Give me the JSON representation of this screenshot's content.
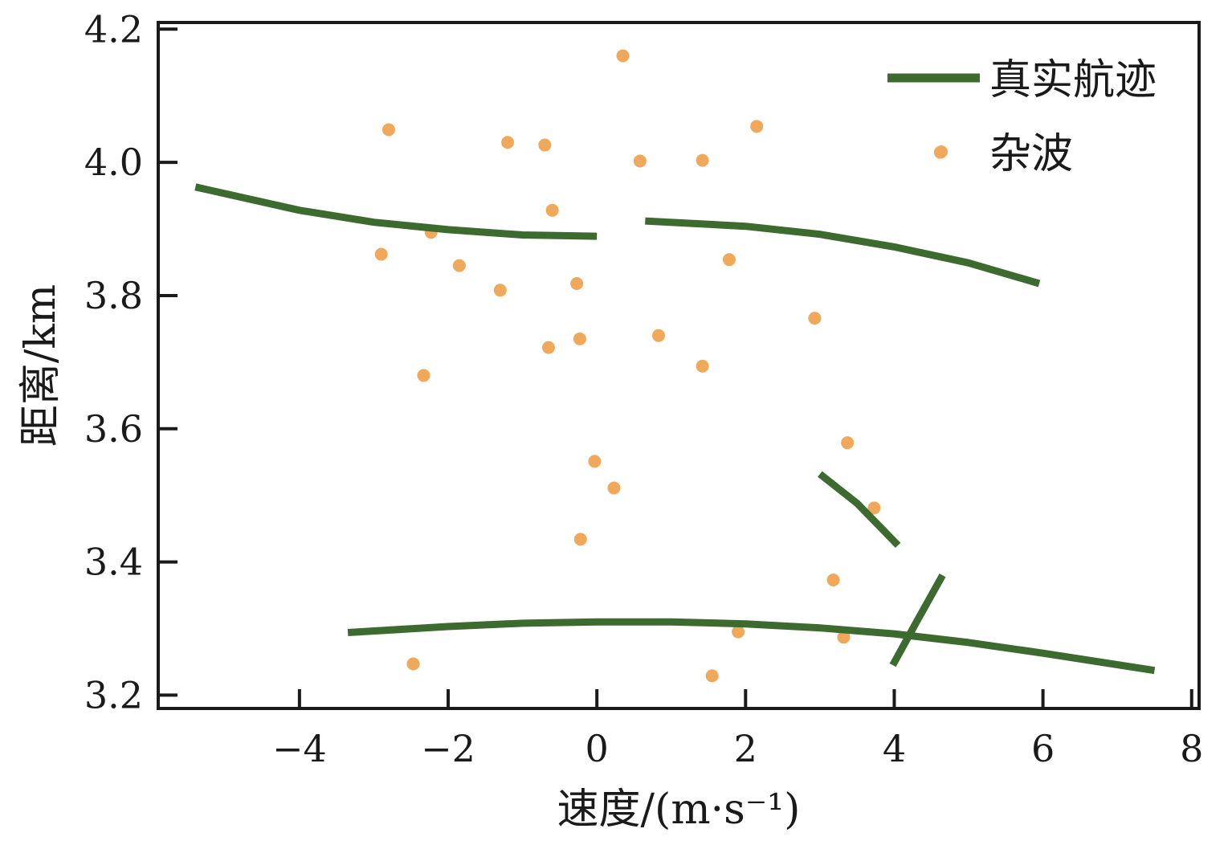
{
  "chart_data": {
    "type": "scatter",
    "xlabel": "速度/(m·s⁻¹)",
    "ylabel": "距离/km",
    "xlim": [
      -5.9,
      8.1
    ],
    "ylim": [
      3.18,
      4.21
    ],
    "x_ticks": [
      -4,
      -2,
      0,
      2,
      4,
      6,
      8
    ],
    "y_ticks": [
      3.2,
      3.4,
      3.6,
      3.8,
      4.0,
      4.2
    ],
    "x_tick_labels": [
      "−4",
      "−2",
      "0",
      "2",
      "4",
      "6",
      "8"
    ],
    "y_tick_labels": [
      "3.2",
      "3.4",
      "3.6",
      "3.8",
      "4.0",
      "4.2"
    ],
    "grid": false,
    "legend_position": "top-right",
    "colors": {
      "track": "#3d6b2f",
      "clutter": "#f0a95a",
      "axis": "#1a1a1a"
    },
    "series": [
      {
        "name": "真实航迹",
        "kind": "line",
        "segments": [
          {
            "x": [
              -5.4,
              -4.0,
              -3.0,
              -2.0,
              -1.0,
              0.0
            ],
            "y": [
              3.963,
              3.928,
              3.91,
              3.899,
              3.891,
              3.889
            ]
          },
          {
            "x": [
              0.65,
              2.0,
              3.0,
              4.0,
              5.0,
              5.95
            ],
            "y": [
              3.912,
              3.904,
              3.892,
              3.873,
              3.849,
              3.818
            ]
          },
          {
            "x": [
              3.0,
              3.5,
              4.05
            ],
            "y": [
              3.532,
              3.488,
              3.425
            ]
          },
          {
            "x": [
              -3.35,
              -2.0,
              -1.0,
              0.0,
              1.0,
              2.0,
              3.0,
              4.0,
              5.0,
              6.0,
              7.5
            ],
            "y": [
              3.294,
              3.303,
              3.308,
              3.31,
              3.31,
              3.307,
              3.301,
              3.292,
              3.279,
              3.263,
              3.237
            ]
          },
          {
            "x": [
              3.98,
              4.3,
              4.65
            ],
            "y": [
              3.245,
              3.31,
              3.38
            ]
          }
        ]
      },
      {
        "name": "杂波",
        "kind": "scatter",
        "points": [
          [
            0.35,
            4.16
          ],
          [
            -2.8,
            4.049
          ],
          [
            -1.2,
            4.03
          ],
          [
            -0.7,
            4.026
          ],
          [
            2.15,
            4.054
          ],
          [
            4.62,
            4.015
          ],
          [
            0.58,
            4.002
          ],
          [
            1.42,
            4.003
          ],
          [
            -0.6,
            3.928
          ],
          [
            -2.23,
            3.895
          ],
          [
            -2.9,
            3.862
          ],
          [
            -1.85,
            3.845
          ],
          [
            1.78,
            3.854
          ],
          [
            -1.3,
            3.808
          ],
          [
            -0.27,
            3.818
          ],
          [
            2.93,
            3.766
          ],
          [
            0.83,
            3.74
          ],
          [
            -0.65,
            3.722
          ],
          [
            -0.23,
            3.735
          ],
          [
            1.42,
            3.694
          ],
          [
            -2.33,
            3.68
          ],
          [
            3.37,
            3.579
          ],
          [
            -0.03,
            3.551
          ],
          [
            0.23,
            3.511
          ],
          [
            3.73,
            3.481
          ],
          [
            -0.22,
            3.434
          ],
          [
            3.18,
            3.373
          ],
          [
            1.9,
            3.295
          ],
          [
            3.32,
            3.287
          ],
          [
            -2.47,
            3.247
          ],
          [
            1.55,
            3.229
          ]
        ]
      }
    ]
  }
}
